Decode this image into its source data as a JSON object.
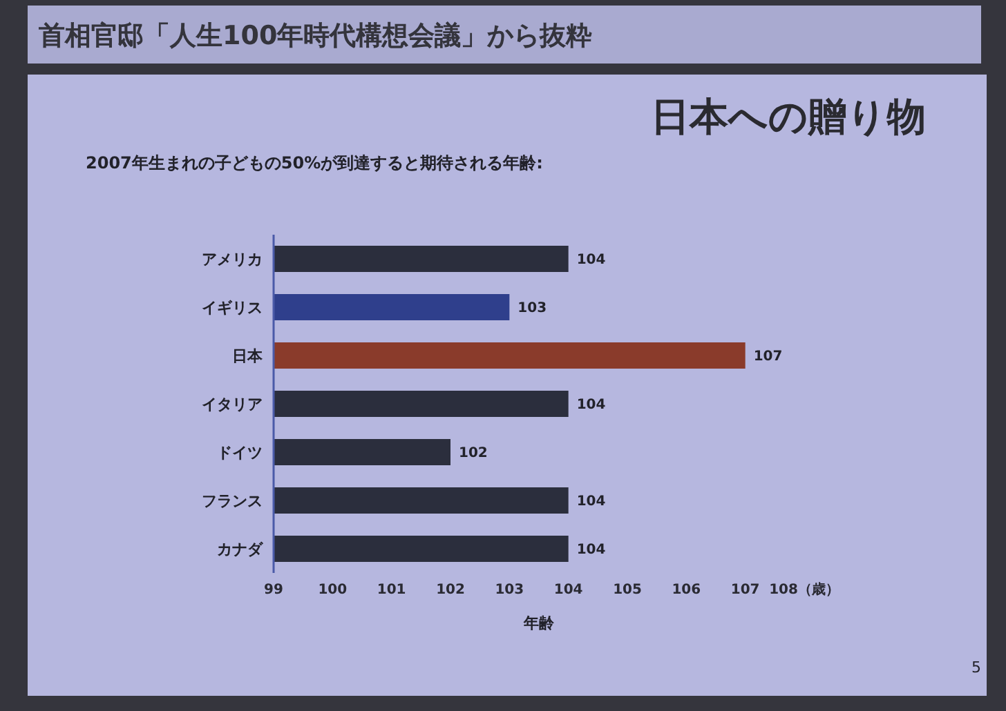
{
  "chart_data": {
    "type": "bar",
    "orientation": "horizontal",
    "title": "日本への贈り物",
    "subtitle": "2007年生まれの子どもの50%が到達すると期待される年齢:",
    "xlabel": "年齢",
    "categories": [
      "アメリカ",
      "イギリス",
      "日本",
      "イタリア",
      "ドイツ",
      "フランス",
      "カナダ"
    ],
    "values": [
      104,
      103,
      107,
      104,
      102,
      104,
      104
    ],
    "colors": [
      "#2b2e3d",
      "#2f3f8c",
      "#8a3b2b",
      "#2b2e3d",
      "#2b2e3d",
      "#2b2e3d",
      "#2b2e3d"
    ],
    "xlim": [
      99,
      108
    ],
    "xticks": [
      99,
      100,
      101,
      102,
      103,
      104,
      105,
      106,
      107,
      {
        "value": 108,
        "label": "108（歳）"
      }
    ],
    "data_labels": true,
    "annotations": [
      "首相官邸「人生100年時代構想会議」から抜粋",
      "5"
    ]
  }
}
